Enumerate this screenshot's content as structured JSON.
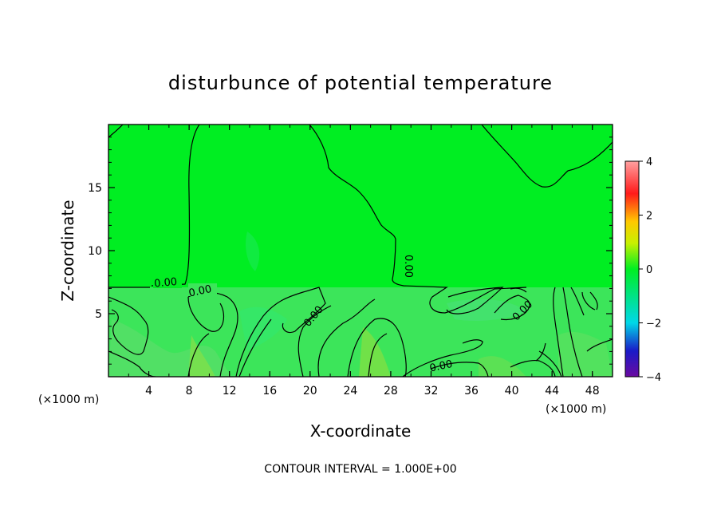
{
  "chart_data": {
    "type": "heatmap",
    "title": "disturbunce of potential temperature",
    "xlabel": "X-coordinate",
    "ylabel": "Z-coordinate",
    "x_unit_left": "(×1000 m)",
    "x_unit_right": "(×1000 m)",
    "xlim": [
      0,
      50
    ],
    "ylim": [
      0,
      20
    ],
    "x_ticks": [
      4,
      8,
      12,
      16,
      20,
      24,
      28,
      32,
      36,
      40,
      44,
      48
    ],
    "y_ticks": [
      5,
      10,
      15
    ],
    "colorbar": {
      "min": -4,
      "max": 4,
      "ticks": [
        4,
        2,
        0,
        -2,
        -4
      ]
    },
    "contour_labels": [
      "0.00",
      "0.00",
      "0.00",
      "0.00",
      "0.00",
      "0.00"
    ],
    "footer": "CONTOUR INTERVAL = 1.000E+00",
    "colors": {
      "background_field": "#00ee22",
      "low_layer_field": "#3ce55a",
      "contour": "#000000"
    }
  }
}
